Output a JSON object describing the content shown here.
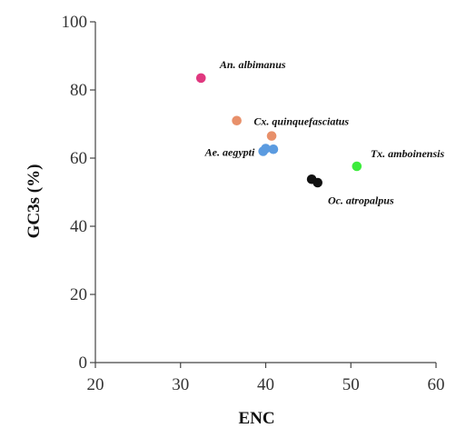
{
  "chart_data": {
    "type": "scatter",
    "title": "",
    "xlabel": "ENC",
    "ylabel": "GC3s (%)",
    "xlim": [
      20,
      60
    ],
    "ylim": [
      0,
      100
    ],
    "xticks": [
      "20",
      "30",
      "40",
      "50",
      "60"
    ],
    "yticks": [
      "0",
      "20",
      "40",
      "60",
      "80",
      "100"
    ],
    "grid": false,
    "legend": "none",
    "points": [
      {
        "x": 32.4,
        "y": 83.5,
        "color": "#e0387f"
      },
      {
        "x": 36.6,
        "y": 71.0,
        "color": "#e8906a"
      },
      {
        "x": 40.7,
        "y": 66.5,
        "color": "#e8906a"
      },
      {
        "x": 39.7,
        "y": 62.0,
        "color": "#5b9be0"
      },
      {
        "x": 40.0,
        "y": 62.8,
        "color": "#5b9be0"
      },
      {
        "x": 40.9,
        "y": 62.6,
        "color": "#5b9be0"
      },
      {
        "x": 45.4,
        "y": 53.8,
        "color": "#111111"
      },
      {
        "x": 46.1,
        "y": 52.8,
        "color": "#111111"
      },
      {
        "x": 50.7,
        "y": 57.6,
        "color": "#3cec3c"
      }
    ],
    "annotations": [
      {
        "text": "An. albimanus",
        "x": 34.6,
        "y": 86.4,
        "anchor": "start"
      },
      {
        "text": "Cx. quinquefasciatus",
        "x": 38.6,
        "y": 69.8,
        "anchor": "start"
      },
      {
        "text": "Ae. aegypti",
        "x": 38.7,
        "y": 60.7,
        "anchor": "end"
      },
      {
        "text": "Tx. amboinensis",
        "x": 52.3,
        "y": 60.3,
        "anchor": "start"
      },
      {
        "text": "Oc. atropalpus",
        "x": 47.3,
        "y": 46.6,
        "anchor": "start"
      }
    ]
  }
}
